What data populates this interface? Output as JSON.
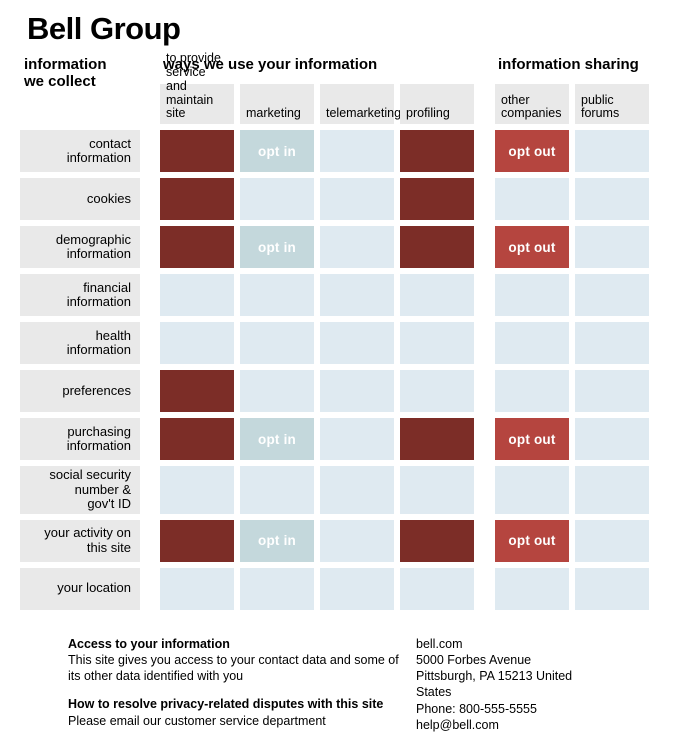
{
  "title": "Bell Group",
  "sections": {
    "collect": "information\nwe collect",
    "use": "ways we use your information",
    "sharing": "information sharing"
  },
  "use_columns": [
    "to provide\nservice and\nmaintain site",
    "marketing",
    "telemarketing",
    "profiling"
  ],
  "sharing_columns": [
    "other\ncompanies",
    "public\nforums"
  ],
  "colors": {
    "header_bg": "#e9e9e9",
    "collected": "#7c2d27",
    "opt_in": "#c4d8dc",
    "opt_out": "#b5453f",
    "not_used": "#dfeaf1"
  },
  "cell_types": {
    "yes": {
      "label": "",
      "color_key": "collected"
    },
    "no": {
      "label": "",
      "color_key": "not_used"
    },
    "optin": {
      "label": "opt in",
      "color_key": "opt_in"
    },
    "optout": {
      "label": "opt out",
      "color_key": "opt_out"
    }
  },
  "rows": [
    {
      "label": "contact\ninformation",
      "cells": [
        "yes",
        "optin",
        "no",
        "yes",
        "optout",
        "no"
      ]
    },
    {
      "label": "cookies",
      "cells": [
        "yes",
        "no",
        "no",
        "yes",
        "no",
        "no"
      ]
    },
    {
      "label": "demographic\ninformation",
      "cells": [
        "yes",
        "optin",
        "no",
        "yes",
        "optout",
        "no"
      ]
    },
    {
      "label": "financial\ninformation",
      "cells": [
        "no",
        "no",
        "no",
        "no",
        "no",
        "no"
      ]
    },
    {
      "label": "health\ninformation",
      "cells": [
        "no",
        "no",
        "no",
        "no",
        "no",
        "no"
      ]
    },
    {
      "label": "preferences",
      "cells": [
        "yes",
        "no",
        "no",
        "no",
        "no",
        "no"
      ]
    },
    {
      "label": "purchasing\ninformation",
      "cells": [
        "yes",
        "optin",
        "no",
        "yes",
        "optout",
        "no"
      ]
    },
    {
      "label": "social security\nnumber &\ngov't ID",
      "cells": [
        "no",
        "no",
        "no",
        "no",
        "no",
        "no"
      ]
    },
    {
      "label": "your activity on\nthis site",
      "cells": [
        "yes",
        "optin",
        "no",
        "yes",
        "optout",
        "no"
      ]
    },
    {
      "label": "your location",
      "cells": [
        "no",
        "no",
        "no",
        "no",
        "no",
        "no"
      ]
    }
  ],
  "footer": {
    "sections": [
      {
        "heading": "Access to your information",
        "body": "This site gives you access to your contact data and some of its other data identified with you"
      },
      {
        "heading": "How to resolve privacy-related disputes with this site",
        "body": "Please email our customer service department"
      }
    ],
    "contact": [
      "bell.com",
      "5000 Forbes Avenue",
      "Pittsburgh, PA 15213 United States",
      "Phone: 800-555-5555",
      "help@bell.com"
    ]
  }
}
